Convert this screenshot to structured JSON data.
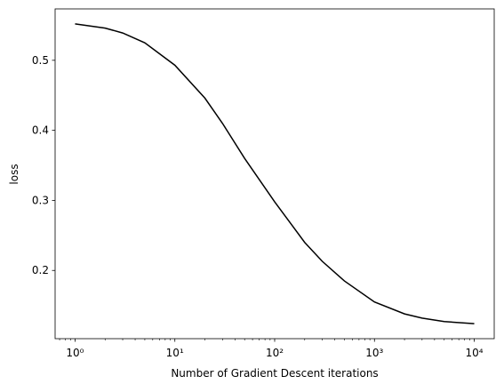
{
  "chart_data": {
    "type": "line",
    "x_label": "Number of Gradient Descent iterations",
    "y_label": "loss",
    "x_scale": "log",
    "x": [
      1,
      2,
      3,
      5,
      10,
      20,
      30,
      50,
      100,
      200,
      300,
      500,
      1000,
      2000,
      3000,
      5000,
      10000
    ],
    "series": [
      {
        "color": "#000000",
        "values": [
          0.552,
          0.546,
          0.539,
          0.525,
          0.493,
          0.446,
          0.41,
          0.36,
          0.298,
          0.24,
          0.213,
          0.185,
          0.155,
          0.138,
          0.132,
          0.127,
          0.124
        ]
      }
    ],
    "xlim": [
      0.631,
      15849
    ],
    "ylim": [
      0.1026,
      0.5734
    ],
    "xticks": [
      {
        "value": 1,
        "label": "10⁰"
      },
      {
        "value": 10,
        "label": "10¹"
      },
      {
        "value": 100,
        "label": "10²"
      },
      {
        "value": 1000,
        "label": "10³"
      },
      {
        "value": 10000,
        "label": "10⁴"
      }
    ],
    "xminorticks": [
      0.7,
      0.8,
      0.9,
      2,
      3,
      4,
      5,
      6,
      7,
      8,
      9,
      20,
      30,
      40,
      50,
      60,
      70,
      80,
      90,
      200,
      300,
      400,
      500,
      600,
      700,
      800,
      900,
      2000,
      3000,
      4000,
      5000,
      6000,
      7000,
      8000,
      9000
    ],
    "yticks": [
      0.2,
      0.3,
      0.4,
      0.5
    ],
    "grid": false
  }
}
